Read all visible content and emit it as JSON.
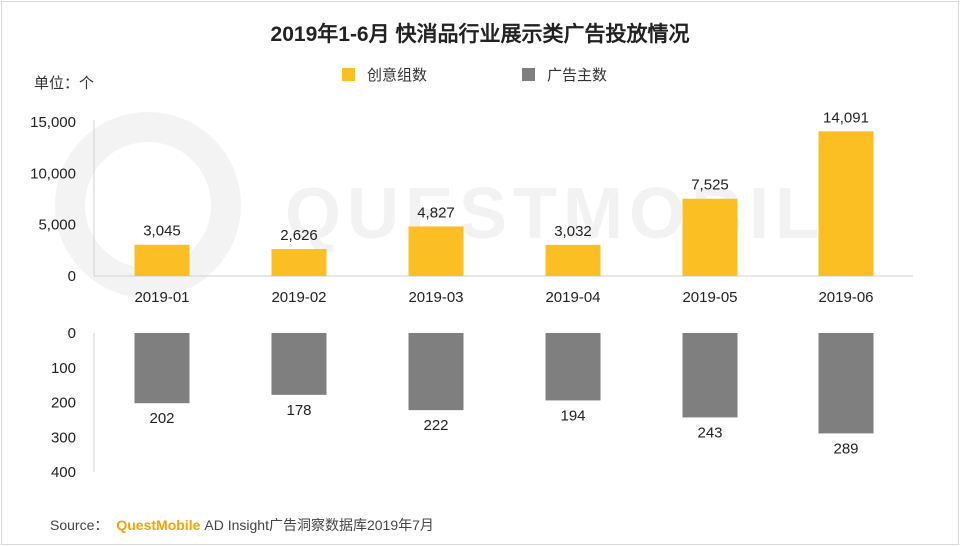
{
  "title": "2019年1-6月 快消品行业展示类广告投放情况",
  "unit_label": "单位：个",
  "legend": [
    {
      "label": "创意组数",
      "color": "#fbbf24"
    },
    {
      "label": "广告主数",
      "color": "#7f7f7f"
    }
  ],
  "watermark": "QUESTMOBILE",
  "source": {
    "prefix": "Source：",
    "brand": "QuestMobile",
    "text": "AD Insight广告洞察数据库2019年7月"
  },
  "chart_data": [
    {
      "type": "bar",
      "categories": [
        "2019-01",
        "2019-02",
        "2019-03",
        "2019-04",
        "2019-05",
        "2019-06"
      ],
      "series": [
        {
          "name": "创意组数",
          "values": [
            3045,
            2626,
            4827,
            3032,
            7525,
            14091
          ]
        }
      ],
      "value_labels": [
        "3,045",
        "2,626",
        "4,827",
        "3,032",
        "7,525",
        "14,091"
      ],
      "ylim": [
        0,
        15000
      ],
      "yticks": [
        0,
        5000,
        10000,
        15000
      ],
      "ytick_labels": [
        "0",
        "5,000",
        "10,000",
        "15,000"
      ],
      "color": "#fbbf24"
    },
    {
      "type": "bar",
      "orientation": "downward",
      "categories": [
        "2019-01",
        "2019-02",
        "2019-03",
        "2019-04",
        "2019-05",
        "2019-06"
      ],
      "series": [
        {
          "name": "广告主数",
          "values": [
            202,
            178,
            222,
            194,
            243,
            289
          ]
        }
      ],
      "value_labels": [
        "202",
        "178",
        "222",
        "194",
        "243",
        "289"
      ],
      "ylim": [
        0,
        400
      ],
      "yticks": [
        0,
        100,
        200,
        300,
        400
      ],
      "ytick_labels": [
        "0",
        "100",
        "200",
        "300",
        "400"
      ],
      "color": "#7f7f7f"
    }
  ]
}
